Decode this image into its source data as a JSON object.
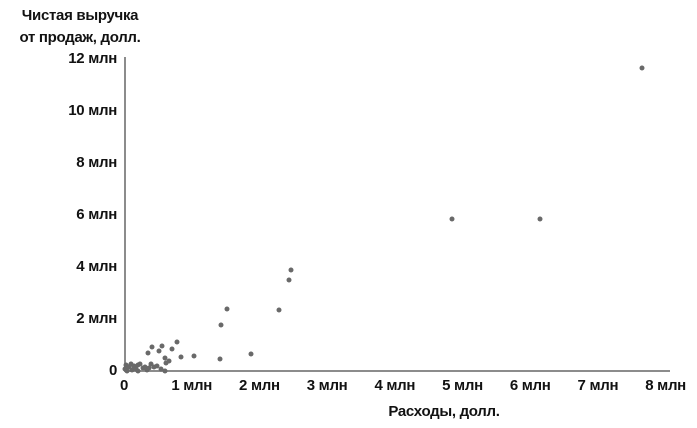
{
  "chart": {
    "y_title_line1": "Чистая выручка",
    "y_title_line2": "от продаж, долл.",
    "x_title": "Расходы, долл."
  },
  "chart_data": {
    "type": "scatter",
    "title": "",
    "xlabel": "Расходы, долл.",
    "ylabel": "Чистая выручка от продаж, долл.",
    "x_unit": "млн долл.",
    "y_unit": "млн долл.",
    "xlim": [
      0,
      8
    ],
    "ylim": [
      0,
      12
    ],
    "grid": false,
    "legend": false,
    "x_ticks": [
      {
        "label": "0",
        "value": 0
      },
      {
        "label": "1 млн",
        "value": 1
      },
      {
        "label": "2 млн",
        "value": 2
      },
      {
        "label": "3 млн",
        "value": 3
      },
      {
        "label": "4 млн",
        "value": 4
      },
      {
        "label": "5 млн",
        "value": 5
      },
      {
        "label": "6 млн",
        "value": 6
      },
      {
        "label": "7 млн",
        "value": 7
      },
      {
        "label": "8 млн",
        "value": 8
      }
    ],
    "y_ticks": [
      {
        "label": "12 млн",
        "value": 12
      },
      {
        "label": "10 млн",
        "value": 10
      },
      {
        "label": "8 млн",
        "value": 8
      },
      {
        "label": "6 млн",
        "value": 6
      },
      {
        "label": "4 млн",
        "value": 4
      },
      {
        "label": "2 млн",
        "value": 2
      },
      {
        "label": "0",
        "value": 0
      }
    ],
    "points": [
      [
        0.02,
        0.1
      ],
      [
        0.03,
        0.26
      ],
      [
        0.05,
        0.05
      ],
      [
        0.08,
        0.18
      ],
      [
        0.1,
        0.3
      ],
      [
        0.12,
        0.08
      ],
      [
        0.15,
        0.22
      ],
      [
        0.17,
        0.12
      ],
      [
        0.2,
        0.28
      ],
      [
        0.21,
        0.05
      ],
      [
        0.24,
        0.3
      ],
      [
        0.28,
        0.15
      ],
      [
        0.31,
        0.21
      ],
      [
        0.34,
        0.08
      ],
      [
        0.35,
        0.74
      ],
      [
        0.37,
        0.14
      ],
      [
        0.4,
        0.3
      ],
      [
        0.42,
        0.97
      ],
      [
        0.45,
        0.2
      ],
      [
        0.49,
        0.22
      ],
      [
        0.51,
        0.8
      ],
      [
        0.54,
        0.12
      ],
      [
        0.56,
        1.01
      ],
      [
        0.6,
        0.04
      ],
      [
        0.6,
        0.55
      ],
      [
        0.62,
        0.33
      ],
      [
        0.66,
        0.42
      ],
      [
        0.71,
        0.9
      ],
      [
        0.78,
        1.15
      ],
      [
        0.84,
        0.58
      ],
      [
        1.04,
        0.62
      ],
      [
        1.42,
        0.51
      ],
      [
        1.44,
        1.79
      ],
      [
        1.52,
        2.43
      ],
      [
        1.87,
        0.7
      ],
      [
        2.29,
        2.4
      ],
      [
        2.44,
        3.53
      ],
      [
        2.46,
        3.91
      ],
      [
        4.85,
        5.9
      ],
      [
        6.15,
        5.9
      ],
      [
        7.65,
        11.68
      ]
    ],
    "colors": {
      "dot": "#696969",
      "axis": "#8c8c8c",
      "text": "#121212"
    }
  }
}
